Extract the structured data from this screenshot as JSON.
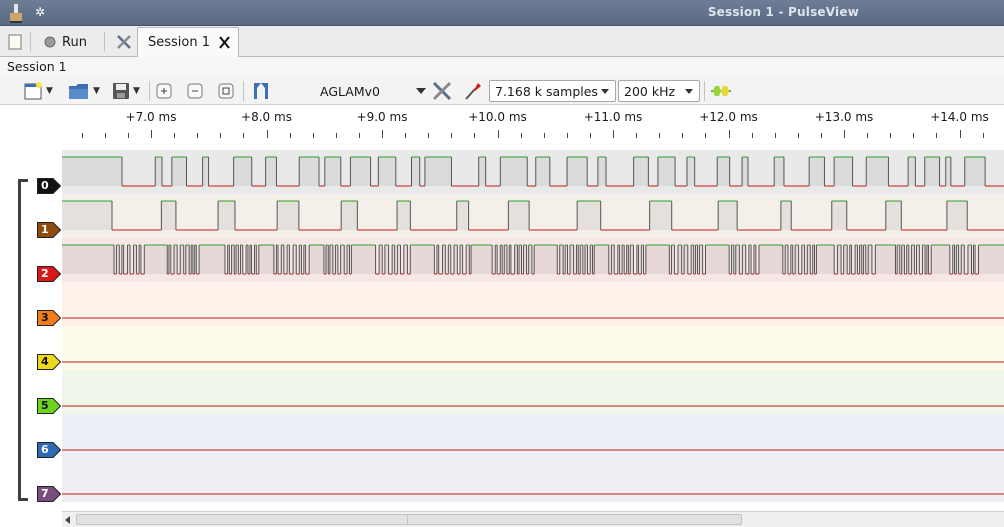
{
  "window": {
    "title": "Session 1 - PulseView"
  },
  "tabbar": {
    "run_label": "Run",
    "session_tab_label": "Session 1"
  },
  "session_label": "Session 1",
  "toolbar": {
    "device_name": "AGLAMv0",
    "samples": "7.168 k samples",
    "samplerate": "200 kHz"
  },
  "ruler": {
    "labels": [
      "+7.0 ms",
      "+8.0 ms",
      "+9.0 ms",
      "+10.0 ms",
      "+11.0 ms",
      "+12.0 ms",
      "+13.0 ms",
      "+14.0 ms"
    ]
  },
  "channels": [
    {
      "label": "0",
      "color": "#111111",
      "text_color": "#ffffff",
      "lane_bg": "#e9e9e9"
    },
    {
      "label": "1",
      "color": "#8f4b0f",
      "text_color": "#ffffff",
      "lane_bg": "#f5efea"
    },
    {
      "label": "2",
      "color": "#d91818",
      "text_color": "#ffffff",
      "lane_bg": "#f6e6e6"
    },
    {
      "label": "3",
      "color": "#f07d1c",
      "text_color": "#111111",
      "lane_bg": "#fdf1ea"
    },
    {
      "label": "4",
      "color": "#ecd81e",
      "text_color": "#111111",
      "lane_bg": "#fdfbe9"
    },
    {
      "label": "5",
      "color": "#6ed21e",
      "text_color": "#111111",
      "lane_bg": "#eff7ea"
    },
    {
      "label": "6",
      "color": "#2f6ab5",
      "text_color": "#ffffff",
      "lane_bg": "#ecf0f6"
    },
    {
      "label": "7",
      "color": "#7a4d7d",
      "text_color": "#ffffff",
      "lane_bg": "#f1eef3"
    }
  ],
  "colors": {
    "signal_high": "#27a22a",
    "signal_low": "#c21b1b",
    "accent": "#5b6b84"
  }
}
